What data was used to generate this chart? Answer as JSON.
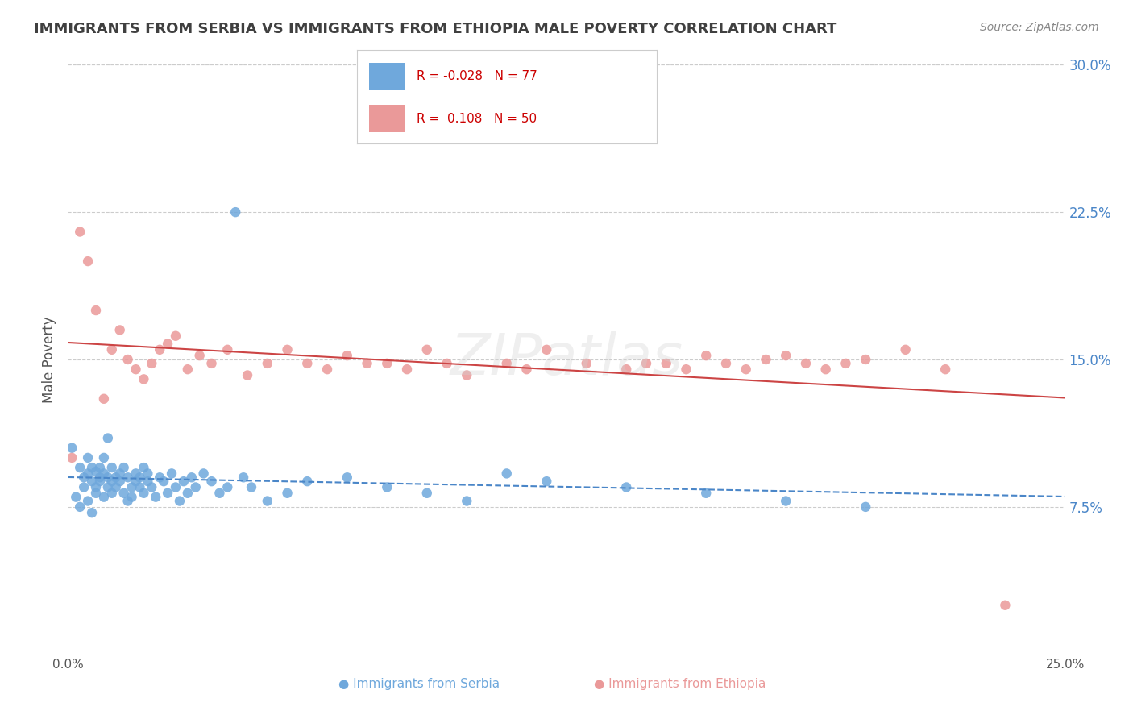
{
  "title": "IMMIGRANTS FROM SERBIA VS IMMIGRANTS FROM ETHIOPIA MALE POVERTY CORRELATION CHART",
  "source": "Source: ZipAtlas.com",
  "xlabel_label": "Immigrants from Serbia",
  "ylabel_label": "Male Poverty",
  "xlabel2_label": "Immigrants from Ethiopia",
  "xlim": [
    0.0,
    0.25
  ],
  "ylim": [
    0.0,
    0.3
  ],
  "xticks": [
    0.0,
    0.25
  ],
  "xtick_labels": [
    "0.0%",
    "25.0%"
  ],
  "yticks": [
    0.075,
    0.15,
    0.225,
    0.3
  ],
  "ytick_labels": [
    "7.5%",
    "15.0%",
    "22.5%",
    "30.0%"
  ],
  "serbia_R": -0.028,
  "serbia_N": 77,
  "ethiopia_R": 0.108,
  "ethiopia_N": 50,
  "serbia_color": "#6fa8dc",
  "ethiopia_color": "#ea9999",
  "serbia_line_color": "#4a86c8",
  "ethiopia_line_color": "#cc4444",
  "serbia_scatter_x": [
    0.001,
    0.002,
    0.003,
    0.003,
    0.004,
    0.004,
    0.005,
    0.005,
    0.005,
    0.006,
    0.006,
    0.006,
    0.007,
    0.007,
    0.007,
    0.008,
    0.008,
    0.008,
    0.009,
    0.009,
    0.009,
    0.01,
    0.01,
    0.01,
    0.011,
    0.011,
    0.011,
    0.012,
    0.012,
    0.013,
    0.013,
    0.014,
    0.014,
    0.015,
    0.015,
    0.016,
    0.016,
    0.017,
    0.017,
    0.018,
    0.018,
    0.019,
    0.019,
    0.02,
    0.02,
    0.021,
    0.022,
    0.023,
    0.024,
    0.025,
    0.026,
    0.027,
    0.028,
    0.029,
    0.03,
    0.031,
    0.032,
    0.034,
    0.036,
    0.038,
    0.04,
    0.042,
    0.044,
    0.046,
    0.05,
    0.055,
    0.06,
    0.07,
    0.08,
    0.09,
    0.1,
    0.11,
    0.12,
    0.14,
    0.16,
    0.18,
    0.2
  ],
  "serbia_scatter_y": [
    0.105,
    0.08,
    0.095,
    0.075,
    0.09,
    0.085,
    0.1,
    0.078,
    0.092,
    0.095,
    0.088,
    0.072,
    0.085,
    0.082,
    0.093,
    0.09,
    0.088,
    0.095,
    0.092,
    0.08,
    0.1,
    0.085,
    0.09,
    0.11,
    0.095,
    0.088,
    0.082,
    0.09,
    0.085,
    0.088,
    0.092,
    0.082,
    0.095,
    0.078,
    0.09,
    0.085,
    0.08,
    0.092,
    0.088,
    0.085,
    0.09,
    0.095,
    0.082,
    0.088,
    0.092,
    0.085,
    0.08,
    0.09,
    0.088,
    0.082,
    0.092,
    0.085,
    0.078,
    0.088,
    0.082,
    0.09,
    0.085,
    0.092,
    0.088,
    0.082,
    0.085,
    0.225,
    0.09,
    0.085,
    0.078,
    0.082,
    0.088,
    0.09,
    0.085,
    0.082,
    0.078,
    0.092,
    0.088,
    0.085,
    0.082,
    0.078,
    0.075
  ],
  "ethiopia_scatter_x": [
    0.001,
    0.003,
    0.005,
    0.007,
    0.009,
    0.011,
    0.013,
    0.015,
    0.017,
    0.019,
    0.021,
    0.023,
    0.025,
    0.027,
    0.03,
    0.033,
    0.036,
    0.04,
    0.045,
    0.05,
    0.055,
    0.06,
    0.065,
    0.07,
    0.075,
    0.08,
    0.085,
    0.09,
    0.095,
    0.1,
    0.11,
    0.115,
    0.12,
    0.13,
    0.14,
    0.145,
    0.15,
    0.155,
    0.16,
    0.165,
    0.17,
    0.175,
    0.18,
    0.185,
    0.19,
    0.195,
    0.2,
    0.21,
    0.22,
    0.235
  ],
  "ethiopia_scatter_y": [
    0.1,
    0.215,
    0.2,
    0.175,
    0.13,
    0.155,
    0.165,
    0.15,
    0.145,
    0.14,
    0.148,
    0.155,
    0.158,
    0.162,
    0.145,
    0.152,
    0.148,
    0.155,
    0.142,
    0.148,
    0.155,
    0.148,
    0.145,
    0.152,
    0.148,
    0.148,
    0.145,
    0.155,
    0.148,
    0.142,
    0.148,
    0.145,
    0.155,
    0.148,
    0.145,
    0.148,
    0.148,
    0.145,
    0.152,
    0.148,
    0.145,
    0.15,
    0.152,
    0.148,
    0.145,
    0.148,
    0.15,
    0.155,
    0.145,
    0.025
  ],
  "watermark": "ZIPatlas",
  "background_color": "#ffffff",
  "grid_color": "#cccccc",
  "title_color": "#404040",
  "axis_label_color": "#4a86c8"
}
